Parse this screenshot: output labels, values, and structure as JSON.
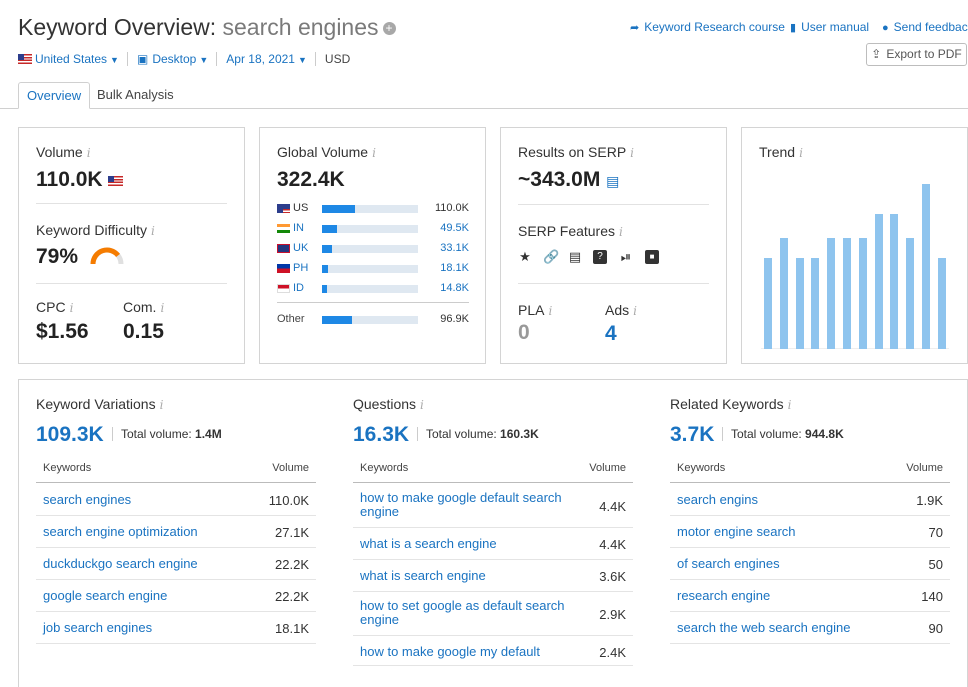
{
  "header": {
    "title_prefix": "Keyword Overview:",
    "keyword": "search engines",
    "plus_glyph": "+",
    "links": {
      "course": "Keyword Research course",
      "manual": "User manual",
      "feedback": "Send feedback"
    },
    "export_label": "Export to PDF",
    "filters": {
      "country": "United States",
      "device": "Desktop",
      "date": "Apr 18, 2021",
      "currency": "USD"
    }
  },
  "tabs": {
    "overview": "Overview",
    "bulk": "Bulk Analysis"
  },
  "volume": {
    "label": "Volume",
    "value": "110.0K"
  },
  "kd": {
    "label": "Keyword Difficulty",
    "value": "79%",
    "percent": 79
  },
  "cpc": {
    "label": "CPC",
    "value": "$1.56"
  },
  "com": {
    "label": "Com.",
    "value": "0.15"
  },
  "global_volume": {
    "label": "Global Volume",
    "value": "322.4K",
    "rows": [
      {
        "code": "US",
        "value": "110.0K",
        "share": 0.34
      },
      {
        "code": "IN",
        "value": "49.5K",
        "share": 0.16
      },
      {
        "code": "UK",
        "value": "33.1K",
        "share": 0.1
      },
      {
        "code": "PH",
        "value": "18.1K",
        "share": 0.06
      },
      {
        "code": "ID",
        "value": "14.8K",
        "share": 0.05
      }
    ],
    "other": {
      "label": "Other",
      "value": "96.9K",
      "share": 0.31
    }
  },
  "serp": {
    "results_label": "Results on SERP",
    "results_value": "~343.0M",
    "features_label": "SERP Features",
    "pla_label": "PLA",
    "pla_value": "0",
    "ads_label": "Ads",
    "ads_value": "4"
  },
  "trend": {
    "label": "Trend",
    "values": [
      0.55,
      0.67,
      0.55,
      0.55,
      0.67,
      0.67,
      0.67,
      0.82,
      0.82,
      0.67,
      1.0,
      0.55
    ]
  },
  "variations": {
    "label": "Keyword Variations",
    "count": "109.3K",
    "total_label": "Total volume:",
    "total_value": "1.4M",
    "col_keywords": "Keywords",
    "col_volume": "Volume",
    "rows": [
      {
        "k": "search engines",
        "v": "110.0K"
      },
      {
        "k": "search engine optimization",
        "v": "27.1K"
      },
      {
        "k": "duckduckgo search engine",
        "v": "22.2K"
      },
      {
        "k": "google search engine",
        "v": "22.2K"
      },
      {
        "k": "job search engines",
        "v": "18.1K"
      }
    ]
  },
  "questions": {
    "label": "Questions",
    "count": "16.3K",
    "total_label": "Total volume:",
    "total_value": "160.3K",
    "col_keywords": "Keywords",
    "col_volume": "Volume",
    "rows": [
      {
        "k": "how to make google default search engine",
        "v": "4.4K"
      },
      {
        "k": "what is a search engine",
        "v": "4.4K"
      },
      {
        "k": "what is search engine",
        "v": "3.6K"
      },
      {
        "k": "how to set google as default search engine",
        "v": "2.9K"
      },
      {
        "k": "how to make google my default",
        "v": "2.4K"
      }
    ]
  },
  "related": {
    "label": "Related Keywords",
    "count": "3.7K",
    "total_label": "Total volume:",
    "total_value": "944.8K",
    "col_keywords": "Keywords",
    "col_volume": "Volume",
    "rows": [
      {
        "k": "search engins",
        "v": "1.9K"
      },
      {
        "k": "motor engine search",
        "v": "70"
      },
      {
        "k": "of search engines",
        "v": "50"
      },
      {
        "k": "research engine",
        "v": "140"
      },
      {
        "k": "search the web search engine",
        "v": "90"
      }
    ]
  },
  "colors": {
    "accent": "#1a73c1",
    "bar": "#1e88e5",
    "trend": "#8ec4ee",
    "kd_gauge": "#f57c00"
  }
}
